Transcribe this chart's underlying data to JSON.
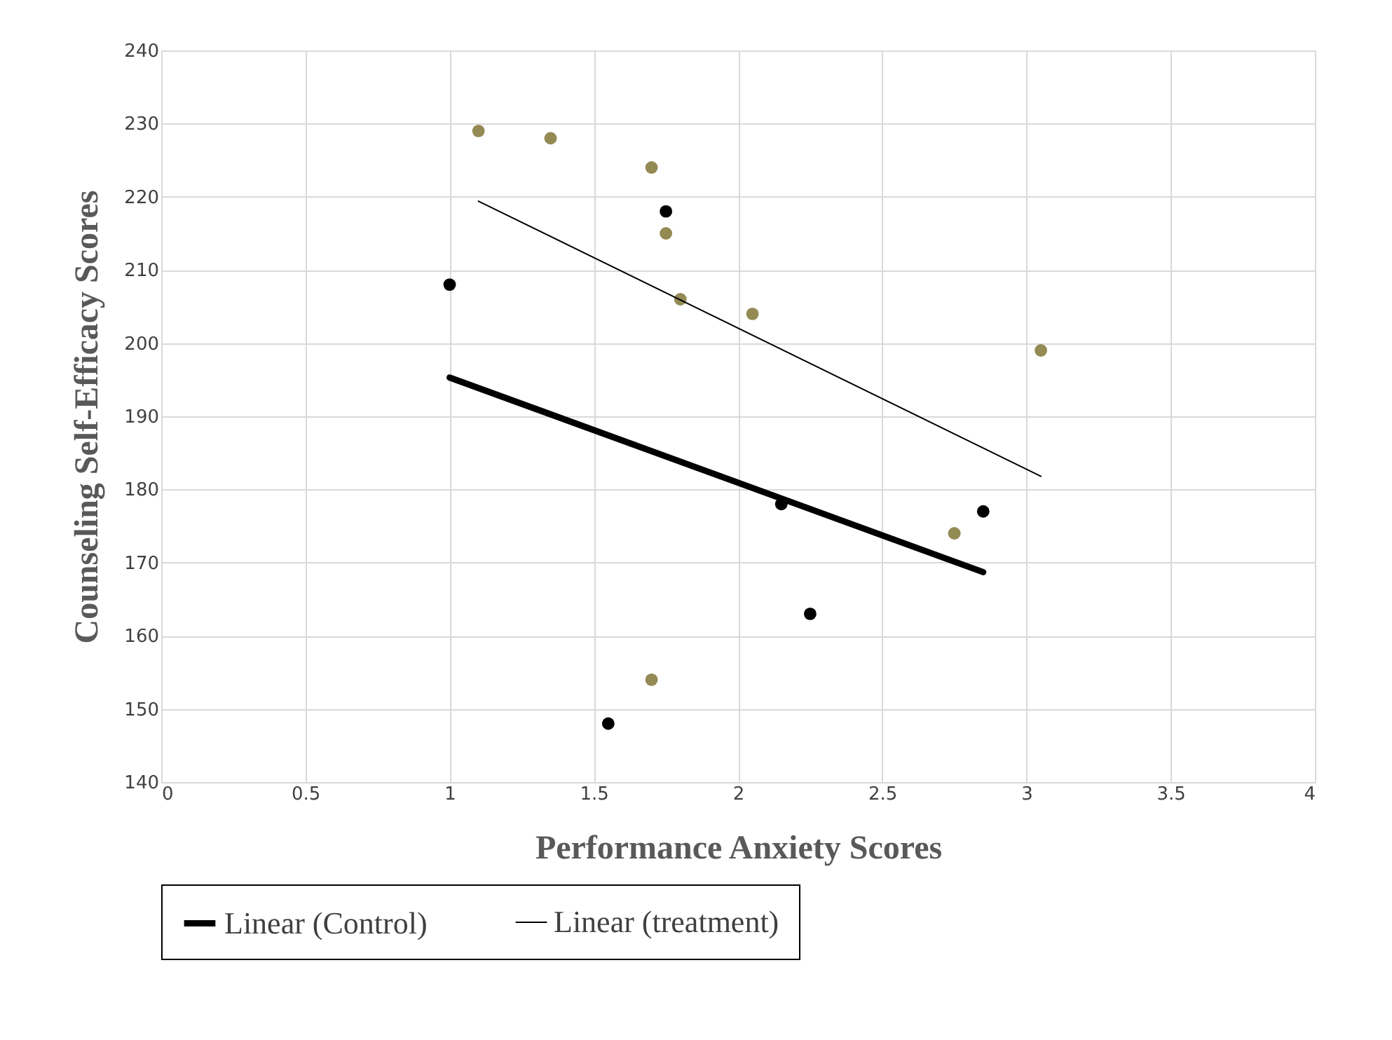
{
  "chart_data": {
    "type": "scatter",
    "xlabel": "Performance Anxiety Scores",
    "ylabel": "Counseling Self-Efficacy Scores",
    "xlim": [
      0,
      4
    ],
    "xticks": [
      0,
      0.5,
      1,
      1.5,
      2,
      2.5,
      3,
      3.5,
      4
    ],
    "ylim": [
      140,
      240
    ],
    "yticks": [
      140,
      150,
      160,
      170,
      180,
      190,
      200,
      210,
      220,
      230,
      240
    ],
    "grid": true,
    "legend": "bottom",
    "series": [
      {
        "marker": "circle",
        "color": "#000000",
        "x": [
          1.0,
          1.75,
          2.15,
          2.25,
          2.85,
          1.55
        ],
        "values": [
          208,
          218,
          178,
          163,
          177,
          148
        ]
      },
      {
        "marker": "circle",
        "color": "#948a54",
        "x": [
          1.1,
          1.35,
          1.7,
          1.75,
          1.8,
          2.05,
          3.05,
          2.75,
          1.7
        ],
        "values": [
          229,
          228,
          224,
          215,
          206,
          204,
          199,
          174,
          154
        ]
      },
      {
        "type": "line",
        "name": "Linear (Control)",
        "color": "#000000",
        "marker": "none",
        "x": [
          1.0,
          2.85
        ],
        "values": [
          195.3,
          168.7
        ]
      },
      {
        "type": "line",
        "name": "Linear (treatment)",
        "color": "#000000",
        "marker": "none",
        "x": [
          1.1,
          3.05
        ],
        "values": [
          219.4,
          181.8
        ]
      }
    ]
  }
}
